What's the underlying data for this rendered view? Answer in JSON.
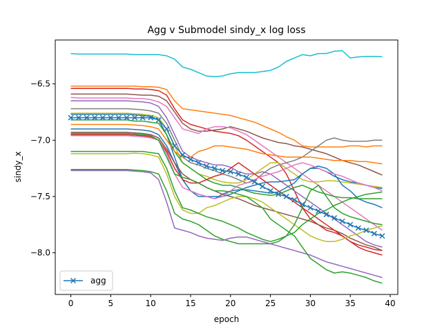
{
  "chart_data": {
    "type": "line",
    "title": "Agg v Submodel sindy_x log loss",
    "xlabel": "epoch",
    "ylabel": "sindy_x",
    "xlim": [
      -1.95,
      40.95
    ],
    "ylim": [
      -8.37,
      -6.11
    ],
    "xticks": [
      0,
      5,
      10,
      15,
      20,
      25,
      30,
      35,
      40
    ],
    "yticks": [
      -8.0,
      -7.5,
      -7.0,
      -6.5
    ],
    "ytick_labels": [
      "−8.0",
      "−7.5",
      "−7.0",
      "−6.5"
    ],
    "grid": false,
    "legend": {
      "placement": "lower-left",
      "entries": [
        "agg"
      ]
    },
    "series": [
      {
        "color": "#17becf",
        "values": [
          -6.23,
          -6.235,
          -6.235,
          -6.235,
          -6.235,
          -6.235,
          -6.235,
          -6.235,
          -6.24,
          -6.24,
          -6.24,
          -6.24,
          -6.25,
          -6.28,
          -6.35,
          -6.37,
          -6.4,
          -6.43,
          -6.435,
          -6.43,
          -6.41,
          -6.4,
          -6.4,
          -6.4,
          -6.39,
          -6.38,
          -6.35,
          -6.3,
          -6.27,
          -6.24,
          -6.25,
          -6.23,
          -6.23,
          -6.21,
          -6.205,
          -6.27,
          -6.26,
          -6.255,
          -6.255,
          -6.258
        ]
      },
      {
        "color": "#ff7f0e",
        "values": [
          -6.52,
          -6.52,
          -6.52,
          -6.52,
          -6.52,
          -6.52,
          -6.52,
          -6.52,
          -6.52,
          -6.525,
          -6.525,
          -6.53,
          -6.55,
          -6.65,
          -6.72,
          -6.73,
          -6.74,
          -6.75,
          -6.76,
          -6.77,
          -6.78,
          -6.8,
          -6.82,
          -6.84,
          -6.87,
          -6.9,
          -6.93,
          -6.97,
          -7.0,
          -7.05,
          -7.06,
          -7.06,
          -7.06,
          -7.06,
          -7.06,
          -7.05,
          -7.05,
          -7.06,
          -7.05,
          -7.05
        ]
      },
      {
        "color": "#d62728",
        "values": [
          -6.54,
          -6.54,
          -6.54,
          -6.54,
          -6.54,
          -6.54,
          -6.54,
          -6.54,
          -6.545,
          -6.545,
          -6.55,
          -6.56,
          -6.6,
          -6.72,
          -6.82,
          -6.86,
          -6.88,
          -6.9,
          -6.92,
          -6.93,
          -6.94,
          -6.96,
          -7.0,
          -7.05,
          -7.1,
          -7.15,
          -7.2,
          -7.3,
          -7.45,
          -7.6,
          -7.7,
          -7.75,
          -7.8,
          -7.82,
          -7.85,
          -7.9,
          -7.93,
          -7.95,
          -7.97,
          -7.98
        ]
      },
      {
        "color": "#8c564b",
        "values": [
          -6.59,
          -6.59,
          -6.59,
          -6.59,
          -6.59,
          -6.59,
          -6.59,
          -6.59,
          -6.595,
          -6.6,
          -6.6,
          -6.61,
          -6.65,
          -6.75,
          -6.85,
          -6.9,
          -6.92,
          -6.92,
          -6.91,
          -6.9,
          -6.88,
          -6.9,
          -6.92,
          -6.95,
          -6.98,
          -7.0,
          -7.02,
          -7.03,
          -7.05,
          -7.06,
          -7.08,
          -7.1,
          -7.12,
          -7.15,
          -7.18,
          -7.2,
          -7.22,
          -7.25,
          -7.28,
          -7.31
        ]
      },
      {
        "color": "#e377c2",
        "values": [
          -6.62,
          -6.625,
          -6.625,
          -6.625,
          -6.625,
          -6.625,
          -6.625,
          -6.625,
          -6.63,
          -6.63,
          -6.64,
          -6.66,
          -6.7,
          -6.8,
          -6.9,
          -6.92,
          -6.94,
          -6.9,
          -6.88,
          -6.88,
          -6.89,
          -6.92,
          -6.95,
          -7.0,
          -7.05,
          -7.1,
          -7.15,
          -7.2,
          -7.25,
          -7.3,
          -7.35,
          -7.4,
          -7.45,
          -7.5,
          -7.55,
          -7.6,
          -7.65,
          -7.7,
          -7.75,
          -7.8
        ]
      },
      {
        "color": "#9467bd",
        "values": [
          -6.65,
          -6.65,
          -6.65,
          -6.65,
          -6.65,
          -6.65,
          -6.65,
          -6.65,
          -6.655,
          -6.66,
          -6.67,
          -6.7,
          -6.8,
          -6.95,
          -7.1,
          -7.15,
          -7.18,
          -7.2,
          -7.22,
          -7.22,
          -7.24,
          -7.28,
          -7.3,
          -7.3,
          -7.28,
          -7.3,
          -7.35,
          -7.4,
          -7.45,
          -7.5,
          -7.55,
          -7.6,
          -7.65,
          -7.7,
          -7.75,
          -7.8,
          -7.85,
          -7.9,
          -7.93,
          -7.95
        ]
      },
      {
        "color": "#7f7f7f",
        "values": [
          -6.72,
          -6.72,
          -6.72,
          -6.72,
          -6.72,
          -6.72,
          -6.72,
          -6.72,
          -6.725,
          -6.73,
          -6.74,
          -6.76,
          -6.85,
          -7.0,
          -7.15,
          -7.2,
          -7.22,
          -7.25,
          -7.27,
          -7.3,
          -7.32,
          -7.35,
          -7.38,
          -7.36,
          -7.3,
          -7.25,
          -7.22,
          -7.2,
          -7.18,
          -7.15,
          -7.1,
          -7.05,
          -7.0,
          -6.98,
          -7.0,
          -7.01,
          -7.01,
          -7.01,
          -7.0,
          -7.0
        ]
      },
      {
        "color": "#bcbd22",
        "values": [
          -6.76,
          -6.76,
          -6.76,
          -6.76,
          -6.76,
          -6.76,
          -6.76,
          -6.76,
          -6.765,
          -6.77,
          -6.78,
          -6.8,
          -6.9,
          -7.05,
          -7.2,
          -7.25,
          -7.3,
          -7.32,
          -7.35,
          -7.37,
          -7.38,
          -7.38,
          -7.35,
          -7.3,
          -7.25,
          -7.2,
          -7.2,
          -7.25,
          -7.3,
          -7.35,
          -7.37,
          -7.37,
          -7.36,
          -7.36,
          -7.37,
          -7.38,
          -7.39,
          -7.4,
          -7.41,
          -7.42
        ]
      },
      {
        "color": "#1f77b4",
        "values": [
          -6.77,
          -6.77,
          -6.77,
          -6.77,
          -6.77,
          -6.77,
          -6.77,
          -6.77,
          -6.775,
          -6.78,
          -6.79,
          -6.82,
          -6.95,
          -7.15,
          -7.35,
          -7.45,
          -7.5,
          -7.5,
          -7.52,
          -7.48,
          -7.45,
          -7.44,
          -7.44,
          -7.45,
          -7.46,
          -7.47,
          -7.46,
          -7.42,
          -7.38,
          -7.3,
          -7.25,
          -7.25,
          -7.28,
          -7.32,
          -7.35,
          -7.37,
          -7.38,
          -7.4,
          -7.42,
          -7.43
        ]
      },
      {
        "color": "#2ca02c",
        "values": [
          -6.82,
          -6.82,
          -6.82,
          -6.82,
          -6.82,
          -6.82,
          -6.82,
          -6.82,
          -6.83,
          -6.83,
          -6.84,
          -6.85,
          -6.95,
          -7.1,
          -7.2,
          -7.25,
          -7.3,
          -7.35,
          -7.38,
          -7.4,
          -7.4,
          -7.42,
          -7.45,
          -7.47,
          -7.48,
          -7.49,
          -7.48,
          -7.45,
          -7.42,
          -7.4,
          -7.43,
          -7.46,
          -7.48,
          -7.5,
          -7.51,
          -7.51,
          -7.52,
          -7.52,
          -7.52,
          -7.52
        ]
      },
      {
        "color": "#ff7f0e",
        "values": [
          -6.86,
          -6.86,
          -6.86,
          -6.86,
          -6.86,
          -6.86,
          -6.86,
          -6.86,
          -6.865,
          -6.87,
          -6.88,
          -6.9,
          -7.0,
          -7.1,
          -7.15,
          -7.15,
          -7.1,
          -7.08,
          -7.05,
          -7.05,
          -7.06,
          -7.07,
          -7.08,
          -7.1,
          -7.12,
          -7.13,
          -7.14,
          -7.15,
          -7.15,
          -7.15,
          -7.15,
          -7.16,
          -7.17,
          -7.18,
          -7.18,
          -7.18,
          -7.19,
          -7.19,
          -7.2,
          -7.21
        ]
      },
      {
        "color": "#1f77b4",
        "values": [
          -6.9,
          -6.9,
          -6.9,
          -6.9,
          -6.9,
          -6.9,
          -6.9,
          -6.9,
          -6.905,
          -6.91,
          -6.92,
          -6.95,
          -7.05,
          -7.2,
          -7.35,
          -7.45,
          -7.48,
          -7.5,
          -7.5,
          -7.5,
          -7.48,
          -7.45,
          -7.42,
          -7.4,
          -7.38,
          -7.37,
          -7.37,
          -7.36,
          -7.35,
          -7.3,
          -7.25,
          -7.23,
          -7.25,
          -7.3,
          -7.4,
          -7.45,
          -7.52,
          -7.55,
          -7.57,
          -7.6
        ]
      },
      {
        "color": "#8c564b",
        "values": [
          -6.93,
          -6.93,
          -6.93,
          -6.93,
          -6.93,
          -6.93,
          -6.93,
          -6.93,
          -6.935,
          -6.94,
          -6.95,
          -6.98,
          -7.08,
          -7.2,
          -7.3,
          -7.35,
          -7.38,
          -7.42,
          -7.45,
          -7.48,
          -7.5,
          -7.52,
          -7.55,
          -7.58,
          -7.6,
          -7.62,
          -7.64,
          -7.66,
          -7.68,
          -7.7,
          -7.72,
          -7.75,
          -7.78,
          -7.8,
          -7.83,
          -7.87,
          -7.9,
          -7.93,
          -7.95,
          -7.98
        ]
      },
      {
        "color": "#d62728",
        "values": [
          -6.95,
          -6.95,
          -6.95,
          -6.95,
          -6.95,
          -6.95,
          -6.95,
          -6.95,
          -6.955,
          -6.96,
          -6.97,
          -7.0,
          -7.1,
          -7.25,
          -7.35,
          -7.38,
          -7.38,
          -7.35,
          -7.32,
          -7.3,
          -7.25,
          -7.2,
          -7.25,
          -7.3,
          -7.35,
          -7.4,
          -7.45,
          -7.5,
          -7.55,
          -7.6,
          -7.65,
          -7.7,
          -7.75,
          -7.8,
          -7.85,
          -7.9,
          -7.95,
          -7.98,
          -8.0,
          -8.02
        ]
      },
      {
        "color": "#e377c2",
        "values": [
          -6.96,
          -6.96,
          -6.96,
          -6.96,
          -6.96,
          -6.96,
          -6.96,
          -6.96,
          -6.965,
          -6.97,
          -6.98,
          -7.0,
          -7.12,
          -7.3,
          -7.42,
          -7.45,
          -7.48,
          -7.5,
          -7.52,
          -7.5,
          -7.45,
          -7.4,
          -7.38,
          -7.35,
          -7.32,
          -7.3,
          -7.28,
          -7.25,
          -7.22,
          -7.2,
          -7.22,
          -7.25,
          -7.28,
          -7.3,
          -7.32,
          -7.35,
          -7.38,
          -7.4,
          -7.42,
          -7.45
        ]
      },
      {
        "color": "#bcbd22",
        "values": [
          -7.12,
          -7.12,
          -7.12,
          -7.12,
          -7.12,
          -7.12,
          -7.12,
          -7.12,
          -7.115,
          -7.12,
          -7.13,
          -7.15,
          -7.3,
          -7.5,
          -7.62,
          -7.65,
          -7.65,
          -7.6,
          -7.58,
          -7.55,
          -7.52,
          -7.5,
          -7.5,
          -7.52,
          -7.55,
          -7.6,
          -7.65,
          -7.7,
          -7.75,
          -7.8,
          -7.85,
          -7.88,
          -7.9,
          -7.9,
          -7.88,
          -7.85,
          -7.83,
          -7.8,
          -7.78,
          -7.76
        ]
      },
      {
        "color": "#2ca02c",
        "values": [
          -7.1,
          -7.1,
          -7.1,
          -7.1,
          -7.1,
          -7.1,
          -7.1,
          -7.1,
          -7.1,
          -7.1,
          -7.11,
          -7.12,
          -7.25,
          -7.45,
          -7.6,
          -7.62,
          -7.65,
          -7.68,
          -7.7,
          -7.72,
          -7.75,
          -7.78,
          -7.82,
          -7.85,
          -7.88,
          -7.9,
          -7.88,
          -7.85,
          -7.82,
          -7.75,
          -7.7,
          -7.65,
          -7.62,
          -7.58,
          -7.55,
          -7.52,
          -7.5,
          -7.48,
          -7.47,
          -7.46
        ]
      },
      {
        "color": "#2ca02c",
        "values": [
          -7.26,
          -7.26,
          -7.26,
          -7.26,
          -7.26,
          -7.26,
          -7.26,
          -7.26,
          -7.265,
          -7.27,
          -7.28,
          -7.3,
          -7.45,
          -7.65,
          -7.7,
          -7.72,
          -7.75,
          -7.8,
          -7.85,
          -7.88,
          -7.9,
          -7.92,
          -7.92,
          -7.92,
          -7.92,
          -7.92,
          -7.9,
          -7.85,
          -7.75,
          -7.6,
          -7.45,
          -7.4,
          -7.5,
          -7.6,
          -7.65,
          -7.68,
          -7.7,
          -7.72,
          -7.74,
          -7.75
        ]
      },
      {
        "color": "#9467bd",
        "values": [
          -7.27,
          -7.27,
          -7.27,
          -7.27,
          -7.27,
          -7.27,
          -7.27,
          -7.27,
          -7.275,
          -7.28,
          -7.29,
          -7.35,
          -7.55,
          -7.78,
          -7.8,
          -7.82,
          -7.85,
          -7.87,
          -7.88,
          -7.89,
          -7.87,
          -7.86,
          -7.86,
          -7.88,
          -7.9,
          -7.92,
          -7.94,
          -7.96,
          -7.98,
          -8.0,
          -8.02,
          -8.05,
          -8.08,
          -8.1,
          -8.12,
          -8.14,
          -8.16,
          -8.18,
          -8.2,
          -8.22
        ]
      },
      {
        "color": "#2ca02c",
        "values": [
          -6.94,
          -6.94,
          -6.94,
          -6.94,
          -6.94,
          -6.94,
          -6.94,
          -6.94,
          -6.945,
          -6.95,
          -6.96,
          -7.0,
          -7.15,
          -7.3,
          -7.33,
          -7.35,
          -7.38,
          -7.42,
          -7.45,
          -7.45,
          -7.46,
          -7.48,
          -7.5,
          -7.55,
          -7.6,
          -7.7,
          -7.75,
          -7.8,
          -7.85,
          -7.95,
          -8.05,
          -8.1,
          -8.15,
          -8.18,
          -8.17,
          -8.18,
          -8.2,
          -8.22,
          -8.25,
          -8.27
        ]
      },
      {
        "name": "agg",
        "color": "#1f77b4",
        "marker": "x",
        "values": [
          -6.8,
          -6.8,
          -6.8,
          -6.8,
          -6.8,
          -6.8,
          -6.8,
          -6.8,
          -6.8,
          -6.8,
          -6.8,
          -6.82,
          -6.9,
          -7.05,
          -7.13,
          -7.17,
          -7.2,
          -7.23,
          -7.25,
          -7.27,
          -7.28,
          -7.3,
          -7.33,
          -7.37,
          -7.41,
          -7.45,
          -7.48,
          -7.5,
          -7.53,
          -7.57,
          -7.6,
          -7.63,
          -7.66,
          -7.69,
          -7.72,
          -7.75,
          -7.78,
          -7.8,
          -7.83,
          -7.85
        ]
      }
    ]
  }
}
